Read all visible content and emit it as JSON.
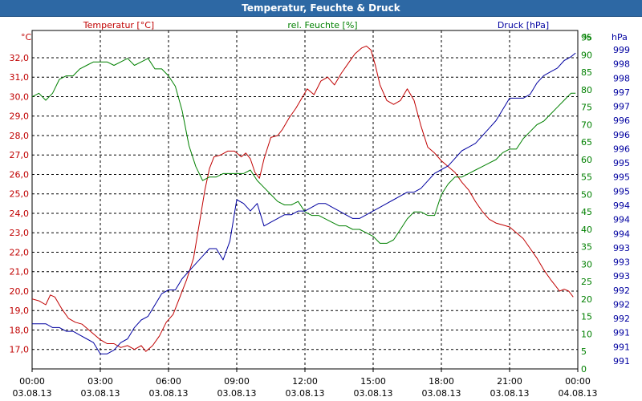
{
  "chart_data": {
    "type": "line",
    "title": "Temperatur, Feuchte & Druck",
    "xlabel": "",
    "x_ticks": [
      {
        "time": "00:00",
        "date": "03.08.13"
      },
      {
        "time": "03:00",
        "date": "03.08.13"
      },
      {
        "time": "06:00",
        "date": "03.08.13"
      },
      {
        "time": "09:00",
        "date": "03.08.13"
      },
      {
        "time": "12:00",
        "date": "03.08.13"
      },
      {
        "time": "15:00",
        "date": "03.08.13"
      },
      {
        "time": "18:00",
        "date": "03.08.13"
      },
      {
        "time": "21:00",
        "date": "03.08.13"
      },
      {
        "time": "00:00",
        "date": "04.08.13"
      }
    ],
    "xlim_hours": [
      0,
      24
    ],
    "axes": {
      "temperature": {
        "unit_label": "°C",
        "title": "Temperatur [°C]",
        "color": "#c00000",
        "range": [
          16.0,
          33.4
        ],
        "ticks": [
          "17,0",
          "18,0",
          "19,0",
          "20,0",
          "21,0",
          "22,0",
          "23,0",
          "24,0",
          "25,0",
          "26,0",
          "27,0",
          "28,0",
          "29,0",
          "30,0",
          "31,0",
          "32,0"
        ]
      },
      "humidity": {
        "unit_label": "%",
        "title": "rel. Feuchte [%]",
        "color": "#008000",
        "range": [
          0,
          97
        ],
        "ticks": [
          "0",
          "5",
          "10",
          "15",
          "20",
          "25",
          "30",
          "35",
          "40",
          "45",
          "50",
          "55",
          "60",
          "65",
          "70",
          "75",
          "80",
          "85",
          "90",
          "95"
        ]
      },
      "pressure": {
        "unit_label": "hPa",
        "title": "Druck [hPa]",
        "color": "#0000a0",
        "range": [
          990.6,
          999.6
        ],
        "ticks": [
          "991",
          "991",
          "991",
          "992",
          "992",
          "992",
          "993",
          "993",
          "993",
          "994",
          "994",
          "994",
          "995",
          "995",
          "995",
          "996",
          "996",
          "996",
          "997",
          "997",
          "998",
          "998",
          "999"
        ]
      }
    },
    "series": [
      {
        "name": "Temperatur [°C]",
        "axis": "temperature",
        "color": "#c00000",
        "x": [
          0,
          0.3,
          0.6,
          0.8,
          1.0,
          1.3,
          1.6,
          1.9,
          2.2,
          2.5,
          2.8,
          3.0,
          3.3,
          3.6,
          3.9,
          4.2,
          4.5,
          4.8,
          5.0,
          5.3,
          5.6,
          5.9,
          6.2,
          6.5,
          6.8,
          7.1,
          7.4,
          7.6,
          7.8,
          8.0,
          8.3,
          8.6,
          8.9,
          9.2,
          9.4,
          9.6,
          9.8,
          10.0,
          10.2,
          10.5,
          10.8,
          11.0,
          11.3,
          11.6,
          11.9,
          12.1,
          12.4,
          12.7,
          13.0,
          13.3,
          13.6,
          13.9,
          14.2,
          14.5,
          14.7,
          14.9,
          15.1,
          15.3,
          15.6,
          15.9,
          16.2,
          16.5,
          16.8,
          17.1,
          17.4,
          17.7,
          18.0,
          18.3,
          18.6,
          18.9,
          19.2,
          19.5,
          19.8,
          20.1,
          20.4,
          20.7,
          21.0,
          21.3,
          21.6,
          21.9,
          22.2,
          22.5,
          22.8,
          23.0,
          23.2,
          23.4,
          23.6,
          23.8
        ],
        "y": [
          19.6,
          19.5,
          19.3,
          19.8,
          19.7,
          19.1,
          18.6,
          18.4,
          18.3,
          18.0,
          17.7,
          17.5,
          17.3,
          17.3,
          17.1,
          17.2,
          17.0,
          17.2,
          16.9,
          17.2,
          17.7,
          18.4,
          18.8,
          19.7,
          20.6,
          21.7,
          23.8,
          25.2,
          26.3,
          26.9,
          27.0,
          27.2,
          27.2,
          26.9,
          27.1,
          26.8,
          26.1,
          25.8,
          26.8,
          27.9,
          28.0,
          28.3,
          28.9,
          29.4,
          30.0,
          30.4,
          30.1,
          30.8,
          31.0,
          30.6,
          31.2,
          31.7,
          32.2,
          32.5,
          32.6,
          32.4,
          31.6,
          30.6,
          29.8,
          29.6,
          29.8,
          30.4,
          29.8,
          28.5,
          27.4,
          27.1,
          26.7,
          26.4,
          26.1,
          25.6,
          25.2,
          24.6,
          24.1,
          23.7,
          23.5,
          23.4,
          23.3,
          23.0,
          22.7,
          22.2,
          21.7,
          21.1,
          20.6,
          20.3,
          20.0,
          20.1,
          20.0,
          19.7
        ]
      },
      {
        "name": "rel. Feuchte [%]",
        "axis": "humidity",
        "color": "#008000",
        "x": [
          0,
          0.3,
          0.6,
          0.9,
          1.2,
          1.5,
          1.8,
          2.1,
          2.4,
          2.7,
          3.0,
          3.3,
          3.6,
          3.9,
          4.2,
          4.5,
          4.8,
          5.1,
          5.4,
          5.7,
          6.0,
          6.3,
          6.6,
          6.9,
          7.2,
          7.5,
          7.8,
          8.1,
          8.4,
          8.7,
          9.0,
          9.3,
          9.6,
          9.9,
          10.2,
          10.5,
          10.8,
          11.1,
          11.4,
          11.7,
          12.0,
          12.3,
          12.6,
          12.9,
          13.2,
          13.5,
          13.8,
          14.1,
          14.4,
          14.7,
          15.0,
          15.3,
          15.6,
          15.9,
          16.2,
          16.5,
          16.8,
          17.1,
          17.4,
          17.7,
          18.0,
          18.3,
          18.6,
          18.9,
          19.2,
          19.5,
          19.8,
          20.1,
          20.4,
          20.7,
          21.0,
          21.3,
          21.6,
          21.9,
          22.2,
          22.5,
          22.8,
          23.1,
          23.4,
          23.7,
          23.9
        ],
        "y": [
          78,
          79,
          77,
          79,
          83,
          84,
          84,
          86,
          87,
          88,
          88,
          88,
          87,
          88,
          89,
          87,
          88,
          89,
          86,
          86,
          84,
          81,
          74,
          64,
          58,
          54,
          55,
          55,
          56,
          56,
          56,
          56,
          57,
          54,
          52,
          50,
          48,
          47,
          47,
          48,
          45,
          44,
          44,
          43,
          42,
          41,
          41,
          40,
          40,
          39,
          38,
          36,
          36,
          37,
          40,
          43,
          45,
          45,
          44,
          44,
          50,
          53,
          55,
          55,
          56,
          57,
          58,
          59,
          60,
          62,
          63,
          63,
          66,
          68,
          70,
          71,
          73,
          75,
          77,
          79,
          79
        ]
      },
      {
        "name": "Druck [hPa]",
        "axis": "pressure",
        "color": "#0000a0",
        "x": [
          0,
          0.3,
          0.6,
          0.9,
          1.2,
          1.5,
          1.8,
          2.1,
          2.4,
          2.7,
          3.0,
          3.3,
          3.6,
          3.9,
          4.2,
          4.5,
          4.8,
          5.1,
          5.4,
          5.7,
          6.0,
          6.3,
          6.6,
          6.9,
          7.2,
          7.5,
          7.8,
          8.1,
          8.4,
          8.7,
          9.0,
          9.3,
          9.6,
          9.9,
          10.2,
          10.5,
          10.8,
          11.1,
          11.4,
          11.7,
          12.0,
          12.3,
          12.6,
          12.9,
          13.2,
          13.5,
          13.8,
          14.1,
          14.4,
          14.7,
          15.0,
          15.3,
          15.6,
          15.9,
          16.2,
          16.5,
          16.8,
          17.1,
          17.4,
          17.7,
          18.0,
          18.3,
          18.6,
          18.9,
          19.2,
          19.5,
          19.8,
          20.1,
          20.4,
          20.7,
          21.0,
          21.3,
          21.6,
          21.9,
          22.2,
          22.5,
          22.8,
          23.1,
          23.4,
          23.7,
          23.9
        ],
        "y": [
          991.8,
          991.8,
          991.8,
          991.7,
          991.7,
          991.6,
          991.6,
          991.5,
          991.4,
          991.3,
          991.0,
          991.0,
          991.1,
          991.3,
          991.4,
          991.7,
          991.9,
          992.0,
          992.3,
          992.6,
          992.7,
          992.7,
          993.0,
          993.2,
          993.4,
          993.6,
          993.8,
          993.8,
          993.5,
          994.0,
          995.1,
          995.0,
          994.8,
          995.0,
          994.4,
          994.5,
          994.6,
          994.7,
          994.7,
          994.8,
          994.8,
          994.9,
          995.0,
          995.0,
          994.9,
          994.8,
          994.7,
          994.6,
          994.6,
          994.7,
          994.8,
          994.9,
          995.0,
          995.1,
          995.2,
          995.3,
          995.3,
          995.4,
          995.6,
          995.8,
          995.9,
          996.0,
          996.2,
          996.4,
          996.5,
          996.6,
          996.8,
          997.0,
          997.2,
          997.5,
          997.8,
          997.8,
          997.8,
          997.9,
          998.2,
          998.4,
          998.5,
          998.6,
          998.8,
          998.9,
          999.0
        ]
      }
    ]
  }
}
